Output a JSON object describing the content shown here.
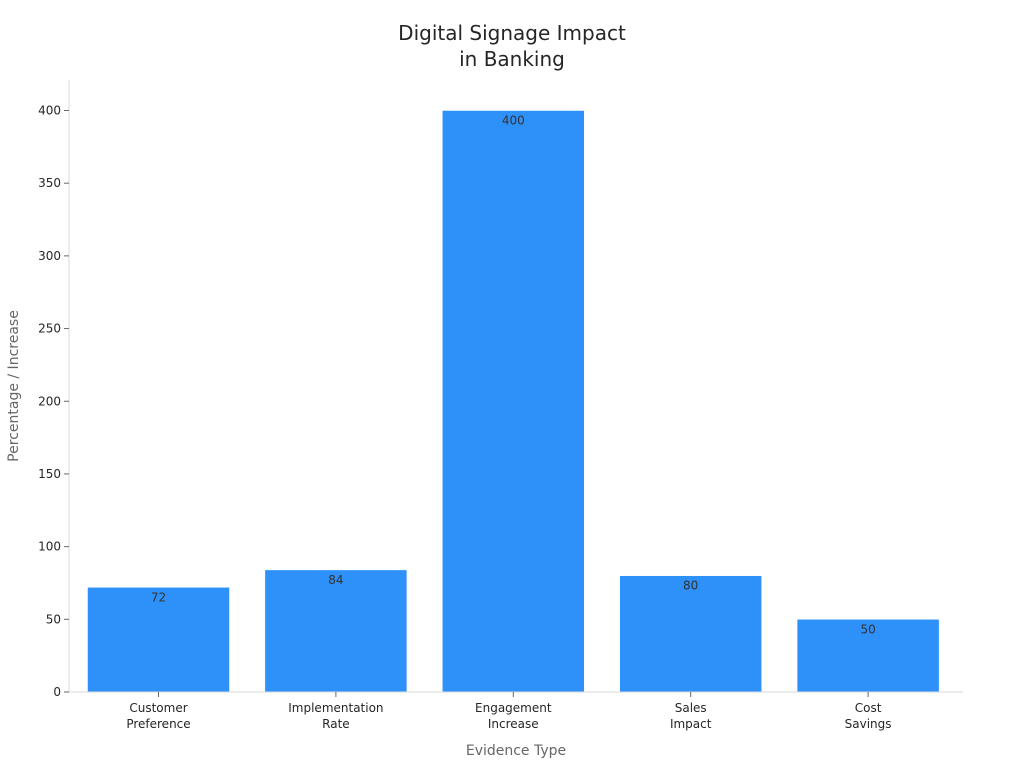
{
  "chart_data": {
    "type": "bar",
    "title": [
      "Digital Signage Impact",
      "in Banking"
    ],
    "xlabel": "Evidence Type",
    "ylabel": "Percentage / Increase",
    "categories": [
      [
        "Customer",
        "Preference"
      ],
      [
        "Implementation",
        "Rate"
      ],
      [
        "Engagement",
        "Increase"
      ],
      [
        "Sales",
        "Impact"
      ],
      [
        "Cost",
        "Savings"
      ]
    ],
    "values": [
      72,
      84,
      400,
      80,
      50
    ],
    "data_labels": [
      "72",
      "84",
      "400",
      "80",
      "50"
    ],
    "yticks": [
      0,
      50,
      100,
      150,
      200,
      250,
      300,
      350,
      400
    ],
    "ylim": [
      0,
      420
    ],
    "bar_color": "#2e91fa",
    "grid": false,
    "legend": "none"
  }
}
